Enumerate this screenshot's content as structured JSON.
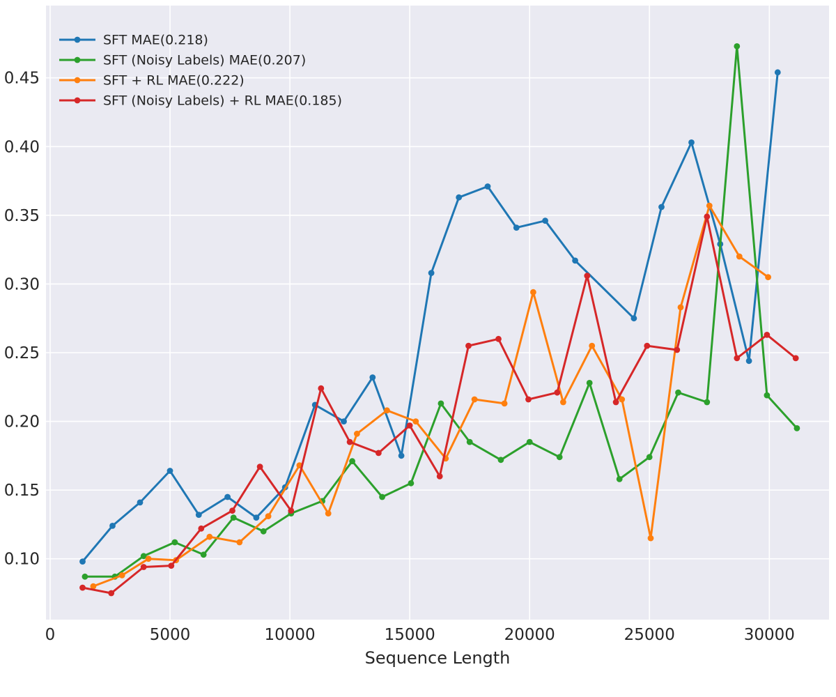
{
  "figure": {
    "background": "#ffffff",
    "panel_background": "#eaeaf2",
    "grid_color": "#ffffff",
    "text_color": "#262626"
  },
  "chart_data": {
    "type": "line",
    "title": "",
    "xlabel": "Sequence Length",
    "ylabel": "",
    "grid": true,
    "legend_position": "upper left",
    "xlim": [
      -300,
      32700
    ],
    "ylim": [
      0.055,
      0.495
    ],
    "x_ticks": [
      0,
      5000,
      10000,
      15000,
      20000,
      25000,
      30000
    ],
    "x_tick_labels": [
      "0",
      "5000",
      "10000",
      "15000",
      "20000",
      "25000",
      "30000"
    ],
    "y_ticks": [
      0.1,
      0.15,
      0.2,
      0.25,
      0.3,
      0.35,
      0.4,
      0.45
    ],
    "y_tick_labels": [
      "0.10",
      "0.15",
      "0.20",
      "0.25",
      "0.30",
      "0.35",
      "0.40",
      "0.45"
    ],
    "series": [
      {
        "name": "SFT",
        "label": "SFT MAE(0.218)",
        "mae": 0.218,
        "color": "#1f77b4",
        "points": [
          [
            1350,
            0.098
          ],
          [
            2600,
            0.124
          ],
          [
            3750,
            0.141
          ],
          [
            5000,
            0.164
          ],
          [
            6200,
            0.132
          ],
          [
            7400,
            0.145
          ],
          [
            8600,
            0.13
          ],
          [
            9800,
            0.152
          ],
          [
            11050,
            0.212
          ],
          [
            12250,
            0.2
          ],
          [
            13450,
            0.232
          ],
          [
            14650,
            0.175
          ],
          [
            15900,
            0.308
          ],
          [
            17050,
            0.363
          ],
          [
            18250,
            0.371
          ],
          [
            19450,
            0.341
          ],
          [
            20650,
            0.346
          ],
          [
            21900,
            0.317
          ],
          [
            24350,
            0.275
          ],
          [
            25500,
            0.356
          ],
          [
            26750,
            0.403
          ],
          [
            27950,
            0.329
          ],
          [
            29150,
            0.244
          ],
          [
            30350,
            0.454
          ]
        ]
      },
      {
        "name": "SFT (Noisy Labels)",
        "label": "SFT (Noisy Labels) MAE(0.207)",
        "mae": 0.207,
        "color": "#2ca02c",
        "points": [
          [
            1450,
            0.087
          ],
          [
            2700,
            0.087
          ],
          [
            3900,
            0.102
          ],
          [
            5200,
            0.112
          ],
          [
            6400,
            0.103
          ],
          [
            7650,
            0.13
          ],
          [
            8900,
            0.12
          ],
          [
            10050,
            0.133
          ],
          [
            11350,
            0.142
          ],
          [
            12600,
            0.171
          ],
          [
            13850,
            0.145
          ],
          [
            15050,
            0.155
          ],
          [
            16300,
            0.213
          ],
          [
            17500,
            0.185
          ],
          [
            18800,
            0.172
          ],
          [
            20000,
            0.185
          ],
          [
            21250,
            0.174
          ],
          [
            22500,
            0.228
          ],
          [
            23750,
            0.158
          ],
          [
            25000,
            0.174
          ],
          [
            26200,
            0.221
          ],
          [
            27400,
            0.214
          ],
          [
            28650,
            0.473
          ],
          [
            29900,
            0.219
          ],
          [
            31150,
            0.195
          ]
        ]
      },
      {
        "name": "SFT + RL",
        "label": "SFT + RL MAE(0.222)",
        "mae": 0.222,
        "color": "#ff7f0e",
        "points": [
          [
            1800,
            0.08
          ],
          [
            3000,
            0.088
          ],
          [
            4100,
            0.1
          ],
          [
            5250,
            0.099
          ],
          [
            6650,
            0.116
          ],
          [
            7900,
            0.112
          ],
          [
            9100,
            0.131
          ],
          [
            10400,
            0.168
          ],
          [
            11600,
            0.133
          ],
          [
            12800,
            0.191
          ],
          [
            14050,
            0.208
          ],
          [
            15250,
            0.2
          ],
          [
            16500,
            0.173
          ],
          [
            17700,
            0.216
          ],
          [
            18950,
            0.213
          ],
          [
            20150,
            0.294
          ],
          [
            21400,
            0.214
          ],
          [
            22600,
            0.255
          ],
          [
            23850,
            0.216
          ],
          [
            25050,
            0.115
          ],
          [
            26300,
            0.283
          ],
          [
            27500,
            0.357
          ],
          [
            28750,
            0.32
          ],
          [
            29950,
            0.305
          ]
        ]
      },
      {
        "name": "SFT (Noisy Labels) + RL",
        "label": "SFT (Noisy Labels) + RL MAE(0.185)",
        "mae": 0.185,
        "color": "#d62728",
        "points": [
          [
            1350,
            0.079
          ],
          [
            2550,
            0.075
          ],
          [
            3900,
            0.094
          ],
          [
            5050,
            0.095
          ],
          [
            6300,
            0.122
          ],
          [
            7600,
            0.135
          ],
          [
            8750,
            0.167
          ],
          [
            10050,
            0.135
          ],
          [
            11300,
            0.224
          ],
          [
            12500,
            0.185
          ],
          [
            13700,
            0.177
          ],
          [
            15000,
            0.197
          ],
          [
            16250,
            0.16
          ],
          [
            17450,
            0.255
          ],
          [
            18700,
            0.26
          ],
          [
            19950,
            0.216
          ],
          [
            21150,
            0.221
          ],
          [
            22400,
            0.306
          ],
          [
            23600,
            0.214
          ],
          [
            24900,
            0.255
          ],
          [
            26150,
            0.252
          ],
          [
            27400,
            0.349
          ],
          [
            28650,
            0.246
          ],
          [
            29900,
            0.263
          ],
          [
            31100,
            0.246
          ]
        ]
      }
    ]
  }
}
